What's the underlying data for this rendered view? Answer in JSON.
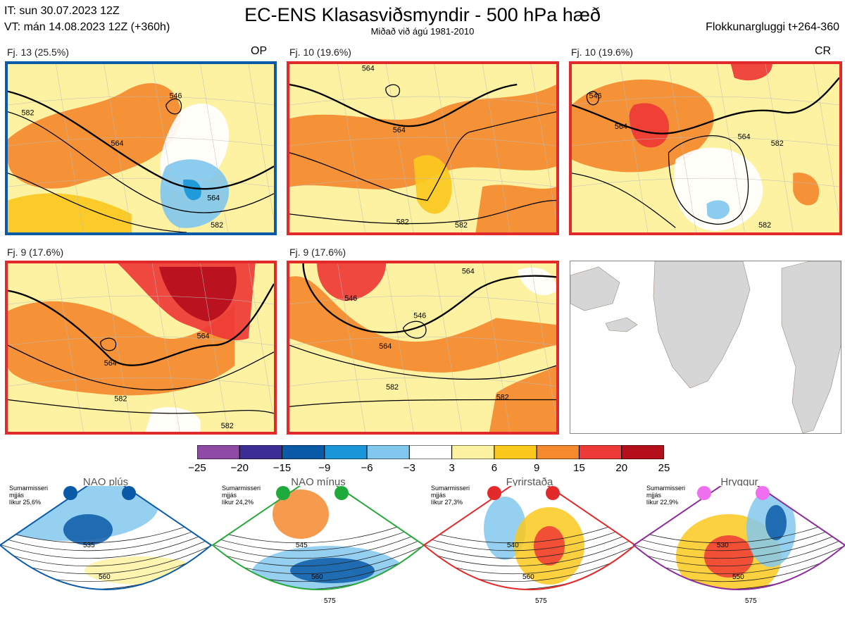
{
  "header": {
    "it_line": "IT: sun 30.07.2023 12Z",
    "vt_line": "VT: mán 14.08.2023 12Z  (+360h)",
    "title": "EC-ENS Klasasviðsmyndir - 500 hPa hæð",
    "subtitle": "Miðað við ágú 1981-2010",
    "window_label": "Flokkunargluggi t+264-360"
  },
  "panels": [
    {
      "label": "Fj. 13 (25.5%)",
      "tag": "OP",
      "frame_color": "#0a5aa8",
      "contours": [
        "546",
        "564",
        "582",
        "564",
        "582"
      ]
    },
    {
      "label": "Fj. 10 (19.6%)",
      "tag": "",
      "frame_color": "#e32a2a",
      "contours": [
        "564",
        "564",
        "582",
        "582"
      ]
    },
    {
      "label": "Fj. 10 (19.6%)",
      "tag": "CR",
      "frame_color": "#e32a2a",
      "contours": [
        "546",
        "564",
        "564",
        "582",
        "582"
      ]
    },
    {
      "label": "Fj. 9 (17.6%)",
      "tag": "",
      "frame_color": "#e32a2a",
      "contours": [
        "564",
        "564",
        "582",
        "582"
      ]
    },
    {
      "label": "Fj. 9 (17.6%)",
      "tag": "",
      "frame_color": "#e32a2a",
      "contours": [
        "546",
        "546",
        "564",
        "564",
        "582",
        "582"
      ]
    }
  ],
  "colorbar": {
    "colors": [
      "#8e4aa5",
      "#3b2d93",
      "#0a5aa8",
      "#1896d8",
      "#82c8ee",
      "#ffffff",
      "#fdf2a2",
      "#fbc91e",
      "#f4892e",
      "#ee3a36",
      "#b50f1c"
    ],
    "ticks": [
      "−25",
      "−20",
      "−15",
      "−9",
      "−6",
      "−3",
      "3",
      "6",
      "9",
      "15",
      "20",
      "25"
    ]
  },
  "regimes": [
    {
      "name": "NAO plús",
      "season": "Sumarmisseri",
      "lines": [
        "mjjás",
        "líkur 25,6%"
      ],
      "dot_color": "#0a5aa8",
      "frame_color": "#0a5aa8",
      "contours": [
        "535",
        "560"
      ]
    },
    {
      "name": "NAO mínus",
      "season": "Sumarmisseri",
      "lines": [
        "mjjás",
        "líkur 24,2%"
      ],
      "dot_color": "#1fab3c",
      "frame_color": "#28a83c",
      "contours": [
        "545",
        "560",
        "575"
      ]
    },
    {
      "name": "Fyrirstaða",
      "season": "Sumarmisseri",
      "lines": [
        "mjjás",
        "líkur 27,3%"
      ],
      "dot_color": "#e32a2a",
      "frame_color": "#e32a2a",
      "contours": [
        "540",
        "560",
        "575"
      ]
    },
    {
      "name": "Hryggur",
      "season": "Sumarmisseri",
      "lines": [
        "mjjás",
        "líkur 22,9%"
      ],
      "dot_color": "#ee70ee",
      "frame_color": "#8c2c9a",
      "contours": [
        "530",
        "550",
        "575"
      ]
    }
  ]
}
